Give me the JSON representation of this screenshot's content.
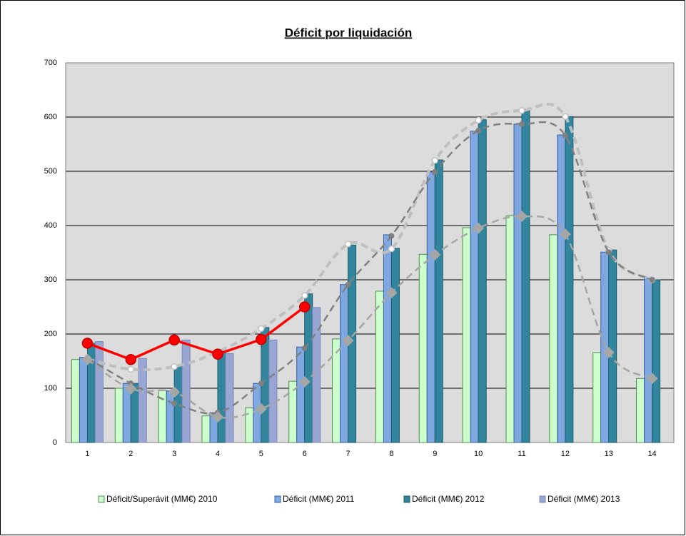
{
  "chart_data": {
    "type": "bar",
    "title": "Déficit por liquidación",
    "categories": [
      "1",
      "2",
      "3",
      "4",
      "5",
      "6",
      "7",
      "8",
      "9",
      "10",
      "11",
      "12",
      "13",
      "14"
    ],
    "ylim": [
      0,
      700
    ],
    "yticks": [
      0,
      100,
      200,
      300,
      400,
      500,
      600,
      700
    ],
    "grid": true,
    "legend": "bottom",
    "series": [
      {
        "name": "Déficit/Superávit (MM€) 2010",
        "type": "bar",
        "color": "#ccffcc",
        "stroke": "#4f8f4f",
        "values": [
          153,
          100,
          96,
          49,
          64,
          113,
          191,
          279,
          347,
          396,
          418,
          383,
          166,
          118
        ]
      },
      {
        "name": "Déficit (MM€) 2011",
        "type": "bar",
        "color": "#7fa7e0",
        "stroke": "#3a5f9e",
        "values": [
          157,
          109,
          95,
          55,
          109,
          176,
          291,
          383,
          499,
          574,
          587,
          567,
          351,
          303
        ]
      },
      {
        "name": "Déficit (MM€) 2012",
        "type": "bar",
        "color": "#31859c",
        "stroke": "#1f5a6a",
        "values": [
          183,
          109,
          141,
          166,
          212,
          274,
          364,
          358,
          521,
          595,
          612,
          601,
          355,
          300
        ]
      },
      {
        "name": "Déficit (MM€) 2013",
        "type": "bar",
        "color": "#99a6d4",
        "stroke": "#7b88b8",
        "values": [
          186,
          155,
          189,
          164,
          189,
          249,
          null,
          null,
          null,
          null,
          null,
          null,
          null,
          null
        ]
      },
      {
        "type": "line",
        "color": "#bfbfbf",
        "width": 4,
        "dashed": true,
        "marker": "open-circle",
        "values": [
          154,
          135,
          140,
          167,
          210,
          271,
          366,
          357,
          520,
          594,
          612,
          601,
          354,
          300
        ]
      },
      {
        "type": "line",
        "color": "#808080",
        "width": 2.5,
        "dashed": true,
        "marker": "dot",
        "values": [
          156,
          109,
          72,
          55,
          109,
          174,
          291,
          381,
          499,
          575,
          587,
          566,
          351,
          300
        ]
      },
      {
        "type": "line",
        "color": "#a6a6a6",
        "width": 2.5,
        "dashed": true,
        "marker": "diamond",
        "values": [
          153,
          99,
          93,
          47,
          62,
          112,
          188,
          276,
          346,
          395,
          417,
          384,
          166,
          118
        ]
      },
      {
        "type": "line",
        "color": "#ff0000",
        "width": 3.5,
        "dashed": false,
        "marker": "circle",
        "values": [
          183,
          153,
          189,
          163,
          190,
          250,
          null,
          null,
          null,
          null,
          null,
          null,
          null,
          null
        ]
      }
    ]
  }
}
